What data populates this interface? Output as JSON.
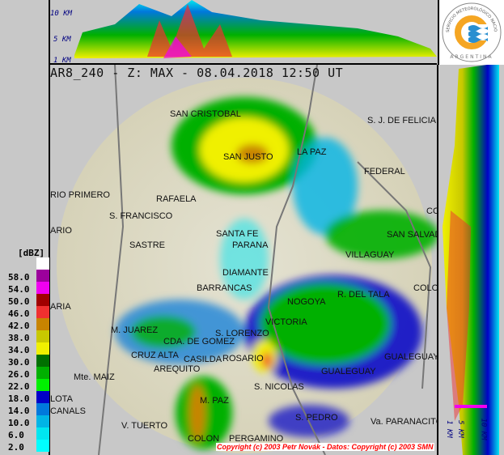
{
  "header": {
    "title": "AR8_240 - Z: MAX - 08.04.2018 12:50 UT"
  },
  "legend": {
    "unit": "[dBZ]",
    "items": [
      {
        "label": "",
        "color": "#ffffff"
      },
      {
        "label": "58.0",
        "color": "#9c009c"
      },
      {
        "label": "54.0",
        "color": "#f000f0"
      },
      {
        "label": "50.0",
        "color": "#a00000"
      },
      {
        "label": "46.0",
        "color": "#f03030"
      },
      {
        "label": "42.0",
        "color": "#c88400"
      },
      {
        "label": "38.0",
        "color": "#c8c800"
      },
      {
        "label": "34.0",
        "color": "#f0f000"
      },
      {
        "label": "30.0",
        "color": "#007000"
      },
      {
        "label": "26.0",
        "color": "#00b000"
      },
      {
        "label": "22.0",
        "color": "#00f000"
      },
      {
        "label": "18.0",
        "color": "#0000c8"
      },
      {
        "label": "14.0",
        "color": "#0078dc"
      },
      {
        "label": "10.0",
        "color": "#00b4e6"
      },
      {
        "label": "6.0",
        "color": "#00e6f0"
      },
      {
        "label": "2.0",
        "color": "#00ffff"
      }
    ]
  },
  "cross_section": {
    "top_labels": [
      "10 KM",
      "5 KM",
      "1 KM"
    ],
    "right_labels": [
      "1 KM",
      "5 KM",
      "10 KM"
    ]
  },
  "logo": {
    "text_top": "SERVICIO METEOROLÓGICO NACIONAL",
    "text_bottom": "ARGENTINA"
  },
  "cities": [
    "SAN CRISTOBAL",
    "SAN JUSTO",
    "LA PAZ",
    "S. J. DE FELICIA",
    "FEDERAL",
    "RIO PRIMERO",
    "RAFAELA",
    "S. FRANCISCO",
    "ARIO",
    "SASTRE",
    "SANTA FE",
    "PARANA",
    "CON",
    "SAN SALVAD",
    "VILLAGUAY",
    "DIAMANTE",
    "BARRANCAS",
    "COLON",
    "R. DEL TALA",
    "ARIA",
    "NOGOYA",
    "VICTORIA",
    "M. JUAREZ",
    "S. LORENZO",
    "CDA. DE GOMEZ",
    "CRUZ ALTA",
    "ROSARIO",
    "CASILDA",
    "GUALEGUAYC",
    "AREQUITO",
    "GUALEGUAY",
    "Mte. MAIZ",
    "S. NICOLAS",
    "LOTA",
    "M. PAZ",
    "CANALS",
    "V. TUERTO",
    "S. PEDRO",
    "Va. PARANACITO",
    "COLON",
    "PERGAMINO"
  ],
  "copyright": "Copyright (c) 2003 Petr Novák - Datos: Copyright (c) 2003 SMN"
}
